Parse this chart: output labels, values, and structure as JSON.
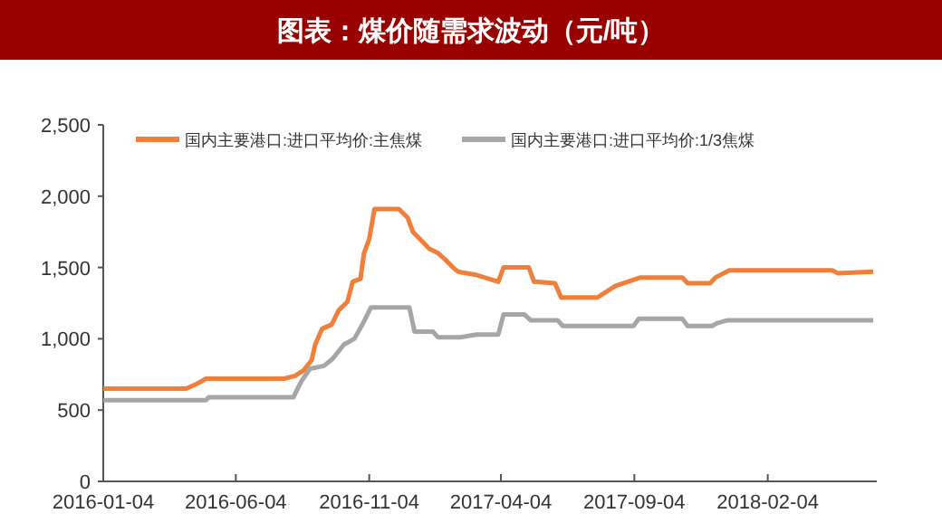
{
  "chart_data": {
    "type": "line",
    "title": "图表：煤价随需求波动（元/吨）",
    "legend": "top",
    "grid": false,
    "xlim": [
      "2016-01-04",
      "2018-06-09"
    ],
    "xticks": [
      "2016-01-04",
      "2016-06-04",
      "2016-11-04",
      "2017-04-04",
      "2017-09-04",
      "2018-02-04"
    ],
    "ylim": [
      0,
      2500
    ],
    "yticks": [
      0,
      {
        "value": 500,
        "label": "500"
      },
      {
        "value": 1000,
        "label": "1,000"
      },
      {
        "value": 1500,
        "label": "1,500"
      },
      {
        "value": 2000,
        "label": "2,000"
      },
      {
        "value": 2500,
        "label": "2,500"
      }
    ],
    "series": [
      {
        "name": "国内主要港口:进口平均价:主焦煤",
        "color": "#f07f3c",
        "x": [
          "2016-01-04",
          "2016-04-08",
          "2016-04-19",
          "2016-05-01",
          "2016-07-29",
          "2016-08-11",
          "2016-08-21",
          "2016-08-30",
          "2016-09-03",
          "2016-09-11",
          "2016-09-22",
          "2016-09-30",
          "2016-10-10",
          "2016-10-16",
          "2016-10-25",
          "2016-10-29",
          "2016-11-04",
          "2016-11-10",
          "2016-12-08",
          "2016-12-18",
          "2016-12-24",
          "2017-01-01",
          "2017-01-12",
          "2017-01-22",
          "2017-01-31",
          "2017-02-08",
          "2017-02-14",
          "2017-03-05",
          "2017-04-01",
          "2017-04-07",
          "2017-05-06",
          "2017-05-12",
          "2017-06-05",
          "2017-06-12",
          "2017-07-24",
          "2017-08-03",
          "2017-08-13",
          "2017-09-11",
          "2017-10-29",
          "2017-11-04",
          "2017-11-30",
          "2017-12-06",
          "2017-12-22",
          "2018-04-19",
          "2018-04-25",
          "2018-06-05"
        ],
        "values": [
          650,
          650,
          680,
          720,
          720,
          740,
          780,
          850,
          960,
          1070,
          1100,
          1200,
          1260,
          1400,
          1420,
          1600,
          1700,
          1910,
          1910,
          1850,
          1750,
          1700,
          1630,
          1600,
          1550,
          1500,
          1470,
          1450,
          1400,
          1500,
          1500,
          1400,
          1390,
          1290,
          1290,
          1330,
          1370,
          1430,
          1430,
          1390,
          1390,
          1430,
          1480,
          1480,
          1460,
          1470
        ]
      },
      {
        "name": "国内主要港口:进口平均价:1/3焦煤",
        "color": "#a6a6a6",
        "x": [
          "2016-01-04",
          "2016-05-01",
          "2016-05-04",
          "2016-08-09",
          "2016-08-18",
          "2016-08-28",
          "2016-09-13",
          "2016-09-23",
          "2016-10-06",
          "2016-10-18",
          "2016-10-28",
          "2016-11-06",
          "2016-12-20",
          "2016-12-26",
          "2017-01-16",
          "2017-01-22",
          "2017-02-16",
          "2017-03-07",
          "2017-04-01",
          "2017-04-07",
          "2017-05-01",
          "2017-05-08",
          "2017-06-08",
          "2017-06-14",
          "2017-09-03",
          "2017-09-09",
          "2017-10-29",
          "2017-11-04",
          "2017-12-02",
          "2017-12-08",
          "2017-12-20",
          "2018-06-05"
        ],
        "values": [
          570,
          570,
          590,
          590,
          700,
          790,
          810,
          860,
          960,
          1000,
          1110,
          1220,
          1220,
          1050,
          1050,
          1010,
          1010,
          1030,
          1030,
          1170,
          1170,
          1130,
          1130,
          1090,
          1090,
          1140,
          1140,
          1090,
          1090,
          1110,
          1130,
          1130
        ]
      }
    ]
  }
}
